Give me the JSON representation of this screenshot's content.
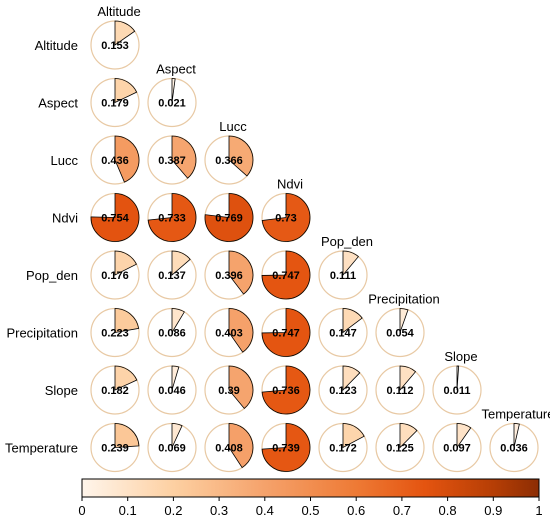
{
  "chart_data": {
    "type": "heatmap",
    "style": "correlation pie matrix (lower triangle)",
    "variables": [
      "Altitude",
      "Aspect",
      "Lucc",
      "Ndvi",
      "Pop_den",
      "Precipitation",
      "Slope",
      "Temperature"
    ],
    "values": [
      [
        0.153
      ],
      [
        0.179,
        0.021
      ],
      [
        0.436,
        0.387,
        0.366
      ],
      [
        0.754,
        0.733,
        0.769,
        0.73
      ],
      [
        0.176,
        0.137,
        0.396,
        0.747,
        0.111
      ],
      [
        0.223,
        0.086,
        0.403,
        0.747,
        0.147,
        0.054
      ],
      [
        0.182,
        0.046,
        0.39,
        0.736,
        0.123,
        0.112,
        0.011
      ],
      [
        0.239,
        0.069,
        0.408,
        0.739,
        0.172,
        0.125,
        0.097,
        0.036
      ]
    ],
    "value_labels": [
      [
        "0.153"
      ],
      [
        "0.179",
        "0.021"
      ],
      [
        "0.436",
        "0.387",
        "0.366"
      ],
      [
        "0.754",
        "0.733",
        "0.769",
        "0.73"
      ],
      [
        "0.176",
        "0.137",
        "0.396",
        "0.747",
        "0.111"
      ],
      [
        "0.223",
        "0.086",
        "0.403",
        "0.747",
        "0.147",
        "0.054"
      ],
      [
        "0.182",
        "0.046",
        "0.39",
        "0.736",
        "0.123",
        "0.112",
        "0.011"
      ],
      [
        "0.239",
        "0.069",
        "0.408",
        "0.739",
        "0.172",
        "0.125",
        "0.097",
        "0.036"
      ]
    ],
    "colorbar": {
      "range": [
        0,
        1
      ],
      "ticks": [
        "0",
        "0.1",
        "0.2",
        "0.3",
        "0.4",
        "0.5",
        "0.6",
        "0.7",
        "0.8",
        "0.9",
        "1"
      ],
      "placement": "bottom"
    },
    "colors": {
      "low": "#fff5eb",
      "mid": "#f5a26b",
      "high": "#8c2d04",
      "ring": "#e8c9a4",
      "wedge_stroke": "#000000"
    }
  }
}
